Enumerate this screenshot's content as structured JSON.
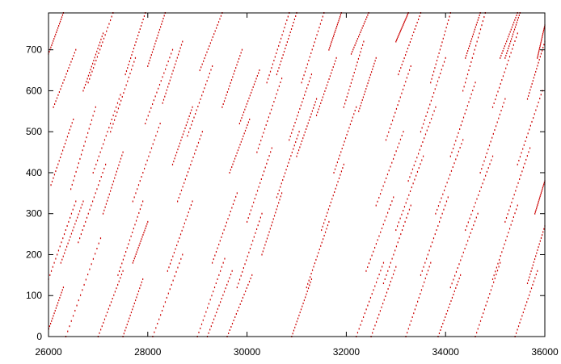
{
  "chart_data": {
    "type": "scatter",
    "title": "",
    "xlabel": "",
    "ylabel": "",
    "xlim": [
      26000,
      36000
    ],
    "ylim": [
      0,
      790
    ],
    "xticks": [
      26000,
      28000,
      30000,
      32000,
      34000,
      36000
    ],
    "xtick_labels": [
      "26000",
      "28000",
      "30000",
      "32000",
      "34000",
      "36000"
    ],
    "yticks": [
      0,
      100,
      200,
      300,
      400,
      500,
      600,
      700
    ],
    "ytick_labels": [
      "0",
      "100",
      "200",
      "300",
      "400",
      "500",
      "600",
      "700"
    ],
    "grid": false,
    "legend": "none",
    "colors": {
      "points": "#cc0000",
      "axis": "#000000",
      "background": "#ffffff"
    },
    "series": [
      {
        "points_per_segment": 20,
        "segments": [
          [
            25950,
            0,
            26300,
            120
          ],
          [
            26000,
            140,
            26550,
            330
          ],
          [
            26050,
            370,
            26500,
            530
          ],
          [
            26100,
            560,
            26550,
            700
          ],
          [
            26000,
            690,
            26300,
            790
          ],
          [
            26350,
            0,
            27050,
            240
          ],
          [
            26600,
            230,
            27150,
            420
          ],
          [
            26900,
            400,
            27450,
            590
          ],
          [
            26800,
            620,
            27300,
            790
          ],
          [
            26450,
            360,
            26950,
            560
          ],
          [
            26250,
            180,
            26700,
            330
          ],
          [
            27000,
            0,
            27500,
            160
          ],
          [
            27400,
            150,
            27900,
            330
          ],
          [
            27700,
            330,
            28250,
            520
          ],
          [
            27950,
            520,
            28500,
            700
          ],
          [
            27250,
            500,
            27750,
            680
          ],
          [
            27550,
            640,
            27950,
            790
          ],
          [
            28000,
            660,
            28350,
            790
          ],
          [
            27100,
            300,
            27500,
            450
          ],
          [
            27500,
            0,
            27900,
            140
          ],
          [
            28100,
            0,
            28700,
            200
          ],
          [
            28400,
            160,
            28900,
            330
          ],
          [
            28600,
            330,
            29100,
            500
          ],
          [
            28800,
            490,
            29300,
            660
          ],
          [
            29050,
            650,
            29500,
            790
          ],
          [
            28500,
            420,
            28900,
            560
          ],
          [
            29000,
            0,
            29550,
            190
          ],
          [
            29300,
            180,
            29800,
            350
          ],
          [
            29200,
            0,
            29700,
            160
          ],
          [
            29600,
            0,
            30100,
            150
          ],
          [
            27700,
            180,
            28000,
            280
          ],
          [
            26700,
            600,
            27100,
            740
          ],
          [
            28300,
            570,
            28700,
            720
          ],
          [
            29650,
            400,
            30050,
            530
          ],
          [
            29800,
            120,
            30300,
            300
          ],
          [
            30000,
            280,
            30500,
            460
          ],
          [
            30200,
            450,
            30700,
            630
          ],
          [
            30400,
            620,
            30850,
            790
          ],
          [
            29500,
            560,
            29900,
            700
          ],
          [
            29850,
            520,
            30250,
            650
          ],
          [
            30300,
            200,
            30700,
            350
          ],
          [
            30600,
            340,
            31050,
            500
          ],
          [
            30850,
            480,
            31300,
            640
          ],
          [
            31100,
            620,
            31550,
            790
          ],
          [
            30900,
            0,
            31300,
            140
          ],
          [
            31200,
            120,
            31650,
            280
          ],
          [
            31500,
            260,
            31950,
            420
          ],
          [
            31750,
            400,
            32200,
            560
          ],
          [
            31950,
            560,
            32350,
            720
          ],
          [
            32100,
            690,
            32450,
            790
          ],
          [
            31400,
            540,
            31800,
            680
          ],
          [
            31000,
            440,
            31400,
            580
          ],
          [
            30600,
            640,
            31000,
            790
          ],
          [
            31650,
            700,
            31900,
            790
          ],
          [
            32200,
            0,
            32750,
            180
          ],
          [
            32400,
            160,
            32950,
            340
          ],
          [
            32600,
            320,
            33150,
            500
          ],
          [
            32800,
            480,
            33300,
            660
          ],
          [
            33050,
            640,
            33500,
            790
          ],
          [
            32500,
            0,
            33000,
            170
          ],
          [
            32750,
            130,
            33300,
            320
          ],
          [
            33000,
            260,
            33550,
            440
          ],
          [
            33250,
            380,
            33800,
            560
          ],
          [
            33500,
            500,
            34000,
            680
          ],
          [
            33700,
            620,
            34100,
            790
          ],
          [
            33200,
            0,
            33700,
            180
          ],
          [
            33500,
            150,
            34050,
            340
          ],
          [
            33800,
            300,
            34350,
            480
          ],
          [
            34100,
            440,
            34600,
            620
          ],
          [
            34350,
            600,
            34800,
            790
          ],
          [
            33850,
            0,
            34300,
            150
          ],
          [
            34100,
            120,
            34650,
            300
          ],
          [
            34400,
            260,
            34950,
            440
          ],
          [
            34700,
            400,
            35200,
            580
          ],
          [
            34950,
            560,
            35450,
            740
          ],
          [
            35200,
            680,
            35500,
            790
          ],
          [
            34600,
            0,
            35100,
            180
          ],
          [
            34950,
            140,
            35450,
            320
          ],
          [
            35200,
            280,
            35700,
            460
          ],
          [
            35450,
            420,
            35950,
            600
          ],
          [
            35650,
            580,
            36000,
            720
          ],
          [
            35400,
            0,
            35850,
            160
          ],
          [
            35650,
            130,
            36000,
            270
          ],
          [
            35800,
            300,
            36000,
            380
          ],
          [
            35100,
            680,
            35450,
            790
          ],
          [
            32250,
            550,
            32600,
            680
          ],
          [
            34400,
            680,
            34700,
            790
          ],
          [
            33000,
            720,
            33250,
            790
          ],
          [
            35850,
            680,
            36000,
            760
          ]
        ]
      }
    ]
  }
}
